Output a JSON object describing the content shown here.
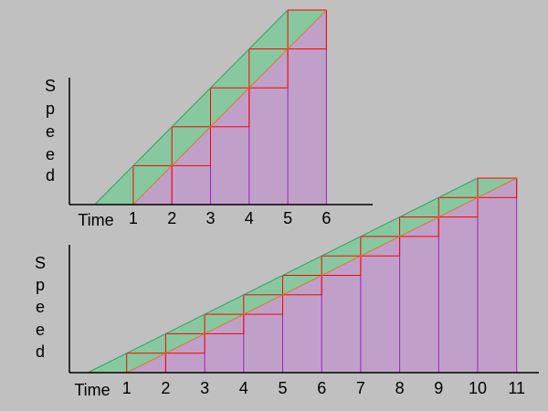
{
  "panels": [
    {
      "y_label_letters": [
        "S",
        "p",
        "e",
        "e",
        "d"
      ],
      "x_label": "Time",
      "ticks": [
        1,
        2,
        3,
        4,
        5,
        6
      ]
    },
    {
      "y_label_letters": [
        "S",
        "p",
        "e",
        "e",
        "d"
      ],
      "x_label": "Time",
      "ticks": [
        1,
        2,
        3,
        4,
        5,
        6,
        7,
        8,
        9,
        10,
        11
      ]
    }
  ]
}
